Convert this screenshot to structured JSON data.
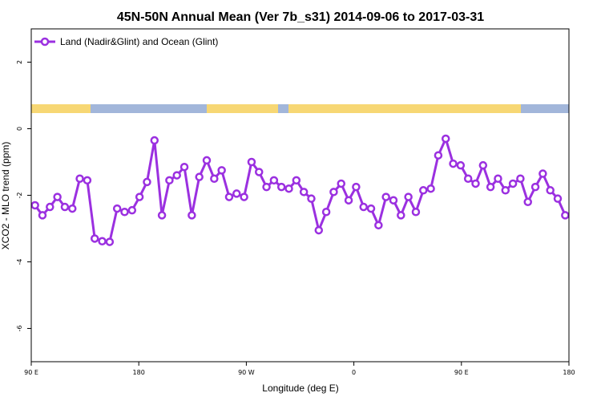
{
  "chart_data": {
    "type": "line",
    "title": "45N-50N Annual Mean (Ver 7b_s31)   2014-09-06 to 2017-03-31",
    "xlabel": "Longitude (deg E)",
    "ylabel": "XCO2 - MLO trend (ppm)",
    "xlim": [
      90,
      450
    ],
    "ylim": [
      -7,
      3
    ],
    "x_ticks": [
      90,
      162,
      234,
      306,
      378,
      450
    ],
    "x_tick_labels": [
      "90 E",
      "180",
      "90 W",
      "0",
      "90 E",
      "180"
    ],
    "y_ticks": [
      2,
      0,
      -2,
      -4,
      -6
    ],
    "y_tick_labels": [
      "2",
      "0",
      "-2",
      "-4",
      "-6"
    ],
    "grid": false,
    "legend_position": "top-left",
    "series": [
      {
        "name": "Land (Nadir&Glint) and Ocean (Glint)",
        "color": "#9b30e0",
        "x": [
          92.5,
          97.5,
          102.5,
          107.5,
          112.5,
          117.5,
          122.5,
          127.5,
          132.5,
          137.5,
          142.5,
          147.5,
          152.5,
          157.5,
          162.5,
          167.5,
          172.5,
          177.5,
          182.5,
          187.5,
          192.5,
          197.5,
          202.5,
          207.5,
          212.5,
          217.5,
          222.5,
          227.5,
          232.5,
          237.5,
          242.5,
          247.5,
          252.5,
          257.5,
          262.5,
          267.5,
          272.5,
          277.5,
          282.5,
          287.5,
          292.5,
          297.5,
          302.5,
          307.5,
          312.5,
          317.5,
          322.5,
          327.5,
          332.5,
          337.5,
          342.5,
          347.5,
          352.5,
          357.5,
          362.5,
          367.5,
          372.5,
          377.5,
          382.5,
          387.5,
          392.5,
          397.5,
          402.5,
          407.5,
          412.5,
          417.5,
          422.5,
          427.5,
          432.5,
          437.5,
          442.5,
          447.5
        ],
        "values": [
          -2.3,
          -2.6,
          -2.35,
          -2.05,
          -2.35,
          -2.4,
          -1.5,
          -1.55,
          -3.3,
          -3.38,
          -3.4,
          -2.4,
          -2.5,
          -2.45,
          -2.05,
          -1.6,
          -0.35,
          -2.6,
          -1.55,
          -1.4,
          -1.15,
          -2.6,
          -1.45,
          -0.95,
          -1.5,
          -1.25,
          -2.05,
          -1.95,
          -2.05,
          -1.0,
          -1.3,
          -1.75,
          -1.55,
          -1.75,
          -1.8,
          -1.55,
          -1.9,
          -2.1,
          -3.05,
          -2.5,
          -1.9,
          -1.65,
          -2.15,
          -1.75,
          -2.35,
          -2.4,
          -2.9,
          -2.05,
          -2.15,
          -2.6,
          -2.05,
          -2.5,
          -1.85,
          -1.8,
          -0.8,
          -0.3,
          -1.05,
          -1.1,
          -1.5,
          -1.65,
          -1.1,
          -1.75,
          -1.5,
          -1.85,
          -1.65,
          -1.5,
          -2.2,
          -1.75,
          -1.35,
          -1.85,
          -2.1,
          -2.6
        ]
      }
    ],
    "surface_strip": {
      "land_color": "#f7d774",
      "ocean_color": "#a2b6da"
    }
  }
}
